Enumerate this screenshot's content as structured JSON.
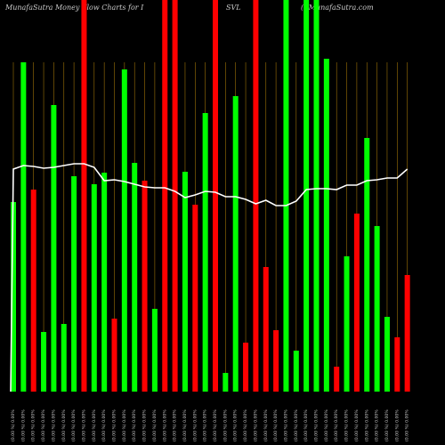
{
  "header": {
    "left": "MunafaSutra  Money  Flow  Charts for I",
    "mid": "SVL",
    "right": "(( MunafaSutra.com"
  },
  "chart_data": {
    "type": "bar",
    "grid": true,
    "colors": {
      "up": "#00ff00",
      "down": "#ff0000",
      "line": "#ffffff",
      "grid": "#b8860b",
      "label": "#c8c8c8"
    },
    "categories": [
      "(0.00 %) 0.00%",
      "(0.00 %) 0.00%",
      "(0.00 %) 0.00%",
      "(0.00 %) 0.00%",
      "(0.00 %) 0.00%",
      "(0.00 %) 0.00%",
      "(0.00 %) 0.00%",
      "(0.00 %) 0.00%",
      "(0.00 %) 0.00%",
      "(0.00 %) 0.00%",
      "(0.00 %) 0.00%",
      "(0.00 %) 0.00%",
      "(0.00 %) 0.00%",
      "(0.00 %) 0.00%",
      "(0.00 %) 0.00%",
      "(0.00 %) 0.00%",
      "(0.00 %) 0.00%",
      "(0.00 %) 0.00%",
      "(0.00 %) 0.00%",
      "(0.00 %) 0.00%",
      "(0.00 %) 0.00%",
      "(0.00 %) 0.00%",
      "(0.00 %) 0.00%",
      "(0.00 %) 0.00%",
      "(0.00 %) 0.00%",
      "(0.00 %) 0.00%",
      "(0.00 %) 0.00%",
      "(0.00 %) 0.00%",
      "(0.00 %) 0.00%",
      "(0.00 %) 0.00%",
      "(0.00 %) 0.00%",
      "(0.00 %) 0.00%",
      "(0.00 %) 0.00%",
      "(0.00 %) 0.00%",
      "(0.00 %) 0.00%",
      "(0.00 %) 0.00%",
      "(0.00 %) 0.00%",
      "(0.00 %) 0.00%",
      "(0.00 %) 0.00%",
      "(0.00 %) 0.00%"
    ],
    "bars": [
      {
        "value": 213,
        "color": "up"
      },
      {
        "value": 370,
        "color": "up"
      },
      {
        "value": 227,
        "color": "down"
      },
      {
        "value": 67,
        "color": "up"
      },
      {
        "value": 322,
        "color": "up"
      },
      {
        "value": 76,
        "color": "up"
      },
      {
        "value": 242,
        "color": "up"
      },
      {
        "value": 440,
        "color": "down"
      },
      {
        "value": 233,
        "color": "up"
      },
      {
        "value": 246,
        "color": "up"
      },
      {
        "value": 82,
        "color": "down"
      },
      {
        "value": 362,
        "color": "up"
      },
      {
        "value": 257,
        "color": "up"
      },
      {
        "value": 237,
        "color": "down"
      },
      {
        "value": 93,
        "color": "up"
      },
      {
        "value": 440,
        "color": "down"
      },
      {
        "value": 440,
        "color": "down"
      },
      {
        "value": 247,
        "color": "up"
      },
      {
        "value": 210,
        "color": "down"
      },
      {
        "value": 313,
        "color": "up"
      },
      {
        "value": 440,
        "color": "down"
      },
      {
        "value": 21,
        "color": "up"
      },
      {
        "value": 332,
        "color": "up"
      },
      {
        "value": 55,
        "color": "down"
      },
      {
        "value": 440,
        "color": "down"
      },
      {
        "value": 140,
        "color": "down"
      },
      {
        "value": 69,
        "color": "down"
      },
      {
        "value": 440,
        "color": "up"
      },
      {
        "value": 46,
        "color": "up"
      },
      {
        "value": 440,
        "color": "up"
      },
      {
        "value": 440,
        "color": "up"
      },
      {
        "value": 374,
        "color": "up"
      },
      {
        "value": 28,
        "color": "down"
      },
      {
        "value": 152,
        "color": "up"
      },
      {
        "value": 200,
        "color": "down"
      },
      {
        "value": 285,
        "color": "up"
      },
      {
        "value": 186,
        "color": "up"
      },
      {
        "value": 84,
        "color": "up"
      },
      {
        "value": 61,
        "color": "down"
      },
      {
        "value": 131,
        "color": "down"
      }
    ],
    "line": [
      250,
      254,
      253,
      251,
      252,
      254,
      256,
      256,
      252,
      237,
      238,
      236,
      233,
      230,
      229,
      229,
      225,
      218,
      221,
      225,
      224,
      219,
      219,
      216,
      211,
      215,
      209,
      209,
      214,
      227,
      228,
      228,
      227,
      232,
      232,
      237,
      238,
      240,
      240,
      250
    ]
  }
}
